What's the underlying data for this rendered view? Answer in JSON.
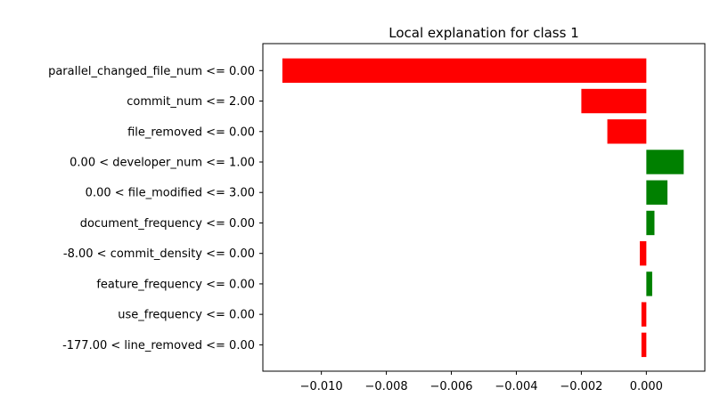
{
  "chart_data": {
    "type": "bar",
    "orientation": "horizontal",
    "title": "Local explanation for class 1",
    "xlabel": "",
    "ylabel": "",
    "categories": [
      "parallel_changed_file_num <= 0.00",
      "commit_num <= 2.00",
      "file_removed <= 0.00",
      "0.00 < developer_num <= 1.00",
      "0.00 < file_modified <= 3.00",
      "document_frequency <= 0.00",
      "-8.00 < commit_density <= 0.00",
      "feature_frequency <= 0.00",
      "use_frequency <= 0.00",
      "-177.00 < line_removed <= 0.00"
    ],
    "values": [
      -0.0112,
      -0.002,
      -0.0012,
      0.00115,
      0.00065,
      0.00025,
      -0.0002,
      0.00018,
      -0.00015,
      -0.00015
    ],
    "xlim": [
      -0.0118,
      0.0018
    ],
    "xticks": [
      -0.01,
      -0.008,
      -0.006,
      -0.004,
      -0.002,
      0.0
    ],
    "xtick_labels": [
      "−0.010",
      "−0.008",
      "−0.006",
      "−0.004",
      "−0.002",
      "0.000"
    ],
    "colors": {
      "positive": "#008000",
      "negative": "#ff0000"
    },
    "grid": false
  }
}
